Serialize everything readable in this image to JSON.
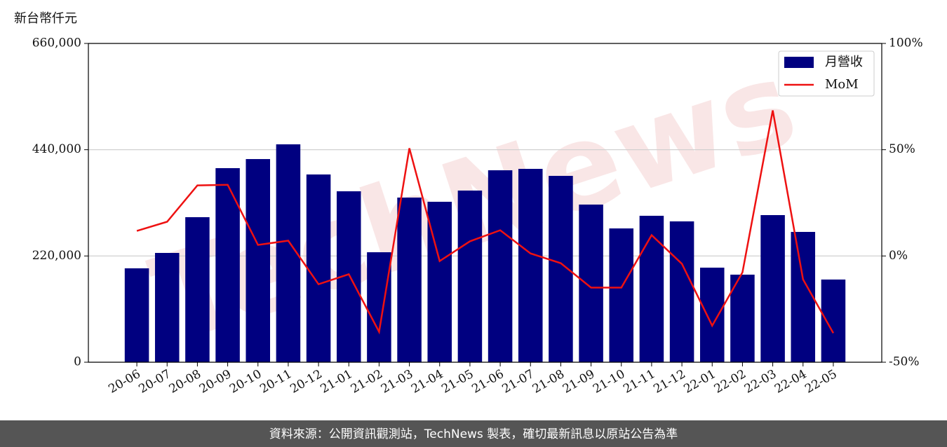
{
  "chart_data": {
    "type": "bar",
    "y_label": "新台幣仟元",
    "watermark": "TechNews",
    "footer": "資料來源：公開資訊觀測站，TechNews 製表，確切最新訊息以原站公告為準",
    "categories": [
      "20-06",
      "20-07",
      "20-08",
      "20-09",
      "20-10",
      "20-11",
      "20-12",
      "21-01",
      "21-02",
      "21-03",
      "21-04",
      "21-05",
      "21-06",
      "21-07",
      "21-08",
      "21-09",
      "21-10",
      "21-11",
      "21-12",
      "22-01",
      "22-02",
      "22-03",
      "22-04",
      "22-05"
    ],
    "series": [
      {
        "name": "月營收",
        "type": "bar",
        "color": "#000080",
        "values": [
          194400,
          226300,
          300300,
          401800,
          420600,
          451100,
          388700,
          353900,
          227700,
          340900,
          332200,
          355400,
          397400,
          400300,
          385800,
          326400,
          277000,
          303200,
          291600,
          195800,
          181300,
          304600,
          269800,
          171200
        ]
      },
      {
        "name": "MoM",
        "type": "line",
        "axis": "y2",
        "color": "#ee1111",
        "values": [
          11.8,
          16.1,
          33.2,
          33.5,
          5.2,
          7.2,
          -13.3,
          -8.6,
          -35.7,
          50.7,
          -2.4,
          6.9,
          12.1,
          1.2,
          -3.4,
          -14.9,
          -14.9,
          9.8,
          -3.7,
          -32.8,
          -7.7,
          68.5,
          -11.0,
          -36.3
        ]
      }
    ],
    "ylim": [
      0,
      660000
    ],
    "yticks": [
      0,
      {
        "value": 220000,
        "label": "220,000"
      },
      {
        "value": 440000,
        "label": "440,000"
      },
      {
        "value": 660000,
        "label": "660,000"
      }
    ],
    "y2lim": [
      -50,
      100
    ],
    "y2ticks": [
      {
        "value": -50,
        "label": "-50%"
      },
      {
        "value": 0,
        "label": "0%"
      },
      {
        "value": 50,
        "label": "50%"
      },
      {
        "value": 100,
        "label": "100%"
      }
    ],
    "grid": true,
    "legend": "upper right"
  }
}
